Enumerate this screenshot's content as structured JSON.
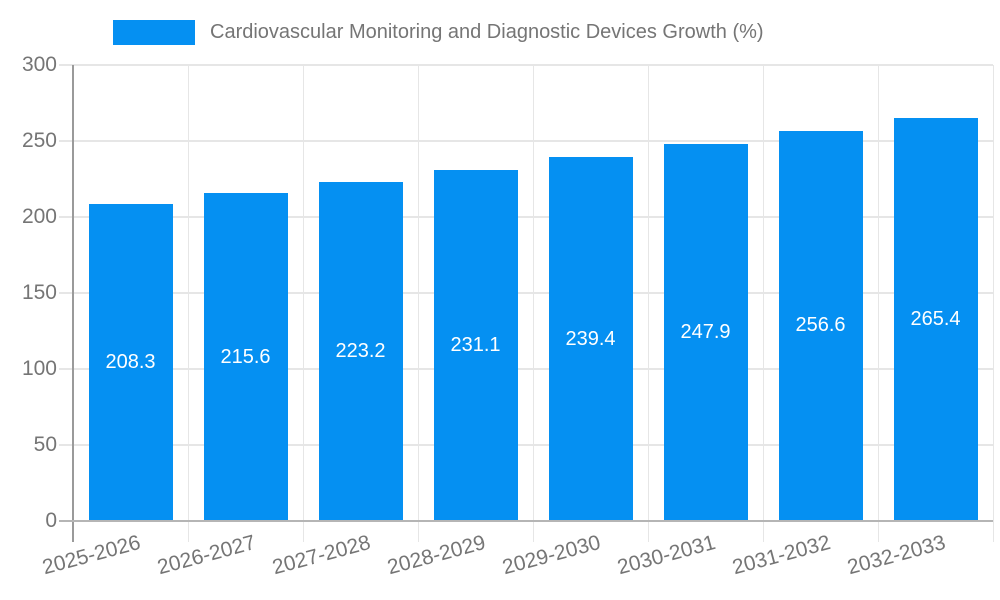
{
  "legend": {
    "position": "top",
    "label": "Cardiovascular Monitoring and Diagnostic Devices Growth (%)"
  },
  "chart_data": {
    "type": "bar",
    "title": "Cardiovascular Monitoring and Diagnostic Devices Growth (%)",
    "xlabel": "",
    "ylabel": "",
    "categories": [
      "2025-2026",
      "2026-2027",
      "2027-2028",
      "2028-2029",
      "2029-2030",
      "2030-2031",
      "2031-2032",
      "2032-2033"
    ],
    "values": [
      208.3,
      215.6,
      223.2,
      231.1,
      239.4,
      247.9,
      256.6,
      265.4
    ],
    "value_labels": [
      "208.3",
      "215.6",
      "223.2",
      "231.1",
      "239.4",
      "247.9",
      "256.6",
      "265.4"
    ],
    "ylim": [
      0,
      300
    ],
    "yticks": [
      0,
      50,
      100,
      150,
      200,
      250,
      300
    ],
    "ytick_labels": [
      "0",
      "50",
      "100",
      "150",
      "200",
      "250",
      "300"
    ],
    "grid": true,
    "legend_position": "top"
  },
  "colors": {
    "bar": "#0590f2",
    "bar_label": "#ffffff",
    "text": "#757575",
    "gridline": "#e6e6e6",
    "axis_line": "#9a9a9a",
    "baseline": "#b5b5b5",
    "background": "#ffffff"
  }
}
